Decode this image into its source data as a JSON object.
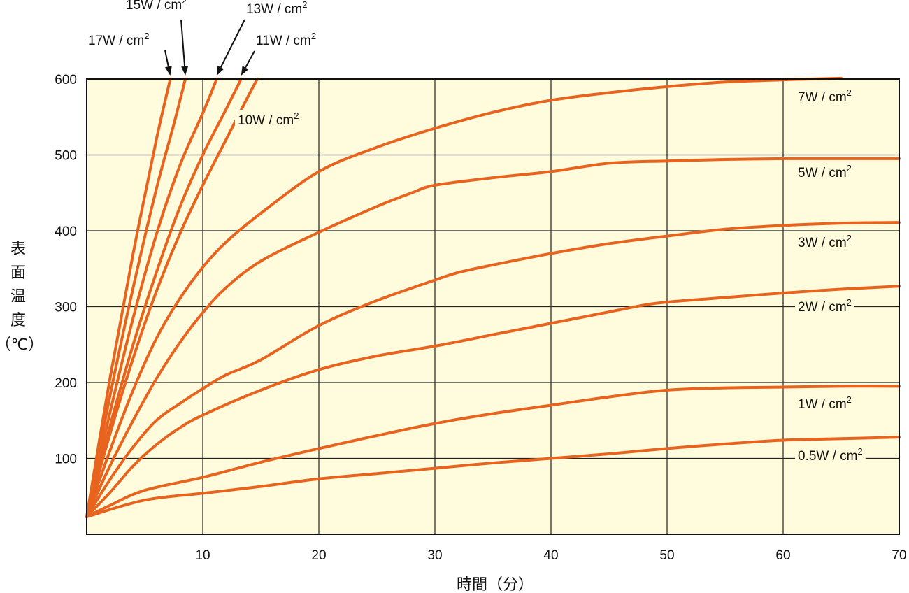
{
  "chart_data": {
    "type": "line",
    "title": "",
    "xlabel": "時間（分）",
    "ylabel_chars": [
      "表",
      "面",
      "温",
      "度",
      "（℃）"
    ],
    "xlim": [
      0,
      70
    ],
    "ylim": [
      0,
      600
    ],
    "x_ticks": [
      10,
      20,
      30,
      40,
      50,
      60,
      70
    ],
    "y_ticks": [
      100,
      200,
      300,
      400,
      500,
      600
    ],
    "grid": true,
    "colors": {
      "line": "#E8641E",
      "plot_background": "#FFFBDD",
      "grid": "#222222"
    },
    "series": [
      {
        "name": "0.5W / cm",
        "sup": "2",
        "points": [
          [
            0,
            23
          ],
          [
            5,
            45
          ],
          [
            10,
            54
          ],
          [
            15,
            63
          ],
          [
            20,
            73
          ],
          [
            25,
            80
          ],
          [
            30,
            87
          ],
          [
            35,
            94
          ],
          [
            40,
            100
          ],
          [
            45,
            106
          ],
          [
            50,
            113
          ],
          [
            55,
            119
          ],
          [
            60,
            124
          ],
          [
            65,
            126
          ],
          [
            70,
            128
          ]
        ]
      },
      {
        "name": "1W / cm",
        "sup": "2",
        "points": [
          [
            0,
            23
          ],
          [
            2,
            38
          ],
          [
            5,
            58
          ],
          [
            10,
            75
          ],
          [
            15,
            95
          ],
          [
            20,
            113
          ],
          [
            25,
            130
          ],
          [
            30,
            146
          ],
          [
            35,
            159
          ],
          [
            40,
            170
          ],
          [
            45,
            181
          ],
          [
            50,
            190
          ],
          [
            55,
            193
          ],
          [
            60,
            194
          ],
          [
            65,
            195
          ],
          [
            70,
            195
          ]
        ]
      },
      {
        "name": "2W / cm",
        "sup": "2",
        "points": [
          [
            0,
            23
          ],
          [
            2,
            55
          ],
          [
            4,
            90
          ],
          [
            6,
            118
          ],
          [
            8,
            140
          ],
          [
            10,
            157
          ],
          [
            15,
            190
          ],
          [
            20,
            217
          ],
          [
            25,
            235
          ],
          [
            30,
            248
          ],
          [
            35,
            263
          ],
          [
            40,
            278
          ],
          [
            45,
            293
          ],
          [
            48,
            302
          ],
          [
            50,
            306
          ],
          [
            55,
            312
          ],
          [
            60,
            318
          ],
          [
            65,
            323
          ],
          [
            70,
            327
          ]
        ]
      },
      {
        "name": "3W / cm",
        "sup": "2",
        "points": [
          [
            0,
            23
          ],
          [
            2,
            72
          ],
          [
            4,
            115
          ],
          [
            6,
            150
          ],
          [
            8,
            172
          ],
          [
            10,
            192
          ],
          [
            12,
            210
          ],
          [
            15,
            230
          ],
          [
            20,
            275
          ],
          [
            25,
            308
          ],
          [
            30,
            335
          ],
          [
            32,
            345
          ],
          [
            35,
            355
          ],
          [
            40,
            370
          ],
          [
            45,
            383
          ],
          [
            50,
            393
          ],
          [
            55,
            402
          ],
          [
            60,
            407
          ],
          [
            65,
            410
          ],
          [
            70,
            411
          ]
        ]
      },
      {
        "name": "5W / cm",
        "sup": "2",
        "points": [
          [
            0,
            23
          ],
          [
            2,
            90
          ],
          [
            4,
            150
          ],
          [
            6,
            205
          ],
          [
            8,
            252
          ],
          [
            10,
            292
          ],
          [
            12,
            325
          ],
          [
            15,
            360
          ],
          [
            20,
            398
          ],
          [
            25,
            432
          ],
          [
            28,
            450
          ],
          [
            30,
            460
          ],
          [
            35,
            470
          ],
          [
            40,
            478
          ],
          [
            45,
            489
          ],
          [
            50,
            492
          ],
          [
            55,
            494
          ],
          [
            60,
            495
          ],
          [
            65,
            495
          ],
          [
            70,
            495
          ]
        ]
      },
      {
        "name": "7W / cm",
        "sup": "2",
        "points": [
          [
            0,
            23
          ],
          [
            2,
            110
          ],
          [
            4,
            190
          ],
          [
            6,
            258
          ],
          [
            8,
            310
          ],
          [
            10,
            352
          ],
          [
            12,
            385
          ],
          [
            15,
            423
          ],
          [
            20,
            478
          ],
          [
            25,
            510
          ],
          [
            30,
            535
          ],
          [
            35,
            556
          ],
          [
            40,
            572
          ],
          [
            45,
            582
          ],
          [
            50,
            590
          ],
          [
            55,
            596
          ],
          [
            60,
            599
          ],
          [
            65,
            601
          ]
        ]
      },
      {
        "name": "10W / cm",
        "sup": "2",
        "points": [
          [
            0,
            23
          ],
          [
            2,
            132
          ],
          [
            4,
            232
          ],
          [
            6,
            320
          ],
          [
            8,
            395
          ],
          [
            10,
            460
          ],
          [
            12,
            520
          ],
          [
            14,
            580
          ],
          [
            14.7,
            600
          ]
        ]
      },
      {
        "name": "11W / cm",
        "sup": "2",
        "points": [
          [
            0,
            23
          ],
          [
            2,
            142
          ],
          [
            4,
            250
          ],
          [
            6,
            345
          ],
          [
            8,
            430
          ],
          [
            10,
            500
          ],
          [
            12,
            560
          ],
          [
            13.3,
            600
          ]
        ]
      },
      {
        "name": "13W / cm",
        "sup": "2",
        "points": [
          [
            0,
            23
          ],
          [
            2,
            160
          ],
          [
            4,
            285
          ],
          [
            6,
            395
          ],
          [
            8,
            485
          ],
          [
            10,
            555
          ],
          [
            11.2,
            600
          ]
        ]
      },
      {
        "name": "15W / cm",
        "sup": "2",
        "points": [
          [
            0,
            23
          ],
          [
            2,
            182
          ],
          [
            4,
            325
          ],
          [
            6,
            455
          ],
          [
            7.5,
            540
          ],
          [
            8.5,
            600
          ]
        ]
      },
      {
        "name": "17W / cm",
        "sup": "2",
        "points": [
          [
            0,
            23
          ],
          [
            2,
            205
          ],
          [
            4,
            370
          ],
          [
            6,
            520
          ],
          [
            7.2,
            600
          ]
        ]
      }
    ]
  }
}
